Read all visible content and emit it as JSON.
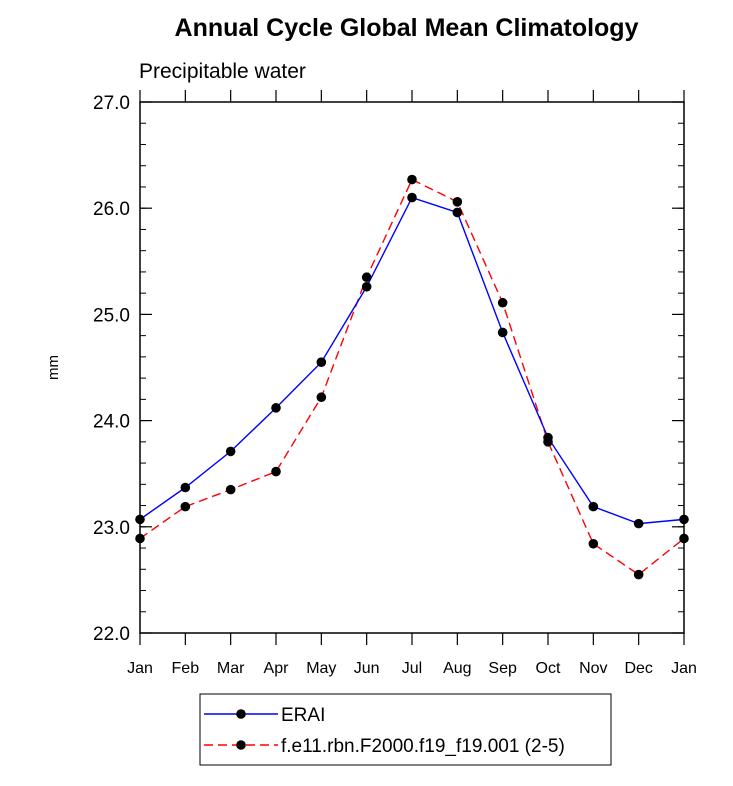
{
  "title": "Annual Cycle Global Mean Climatology",
  "subtitle": "Precipitable water",
  "chart_data": {
    "type": "line",
    "title": "Annual Cycle Global Mean Climatology",
    "subtitle": "Precipitable water",
    "xlabel": "",
    "ylabel": "mm",
    "categories": [
      "Jan",
      "Feb",
      "Mar",
      "Apr",
      "May",
      "Jun",
      "Jul",
      "Aug",
      "Sep",
      "Oct",
      "Nov",
      "Dec",
      "Jan"
    ],
    "ylim": [
      22.0,
      27.0
    ],
    "yticks": [
      "22.0",
      "23.0",
      "24.0",
      "25.0",
      "26.0",
      "27.0"
    ],
    "grid": false,
    "legend_position": "bottom",
    "series": [
      {
        "name": "ERAI",
        "color": "#0000ff",
        "line_style": "solid",
        "marker": "filled-circle",
        "values": [
          23.07,
          23.37,
          23.71,
          24.12,
          24.55,
          25.26,
          26.1,
          25.96,
          24.83,
          23.84,
          23.19,
          23.03,
          23.07
        ]
      },
      {
        "name": "f.e11.rbn.F2000.f19_f19.001 (2-5)",
        "color": "#ff0000",
        "line_style": "dashed",
        "marker": "filled-circle",
        "values": [
          22.89,
          23.19,
          23.35,
          23.52,
          24.22,
          25.35,
          26.27,
          26.06,
          25.11,
          23.8,
          22.84,
          22.55,
          22.89
        ]
      }
    ]
  }
}
